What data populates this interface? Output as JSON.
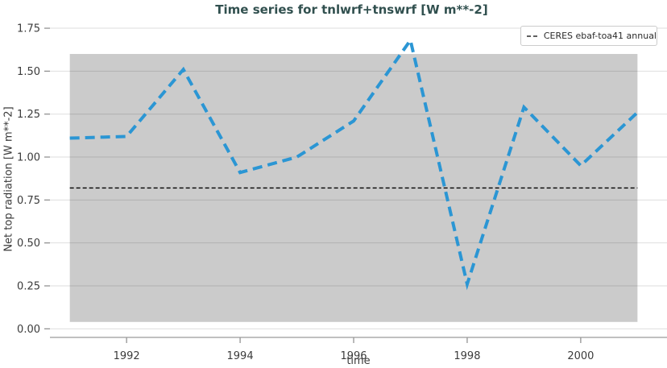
{
  "title": "Time series for tnlwrf+tnswrf [W m**-2]",
  "axes": {
    "xlabel": "time",
    "ylabel": "Net top radiation [W m**-2]"
  },
  "legend": {
    "position": "upper right",
    "items": [
      {
        "label": "CERES ebaf-toa41 annual",
        "sample": "dashed-black-line"
      }
    ]
  },
  "colors": {
    "title_text": "#31504F",
    "series_line": "#2B96D4",
    "reference_line": "#000000",
    "shaded_band": "#CBCBCB",
    "gridline": "rgba(0,0,0,0.13)",
    "axis_spine": "#9A9A9A",
    "tick_mark": "#8A8A8A",
    "tick_label": "#3B3B3B",
    "background": "#FFFFFF"
  },
  "chart_data": {
    "type": "line",
    "title": "Time series for tnlwrf+tnswrf [W m**-2]",
    "xlabel": "time",
    "ylabel": "Net top radiation [W m**-2]",
    "x": [
      1991,
      1992,
      1993,
      1994,
      1995,
      1996,
      1997,
      1998,
      1999,
      2000,
      2001
    ],
    "series": [
      {
        "name": "tnlwrf+tnswrf",
        "values": [
          1.11,
          1.12,
          1.51,
          0.91,
          1.0,
          1.21,
          1.68,
          0.26,
          1.29,
          0.95,
          1.26
        ],
        "color": "#2B96D4",
        "line_style": "dashed",
        "line_width": 4
      }
    ],
    "reference_line": {
      "label": "CERES ebaf-toa41 annual",
      "value": 0.82,
      "x_range": [
        1991,
        2001
      ],
      "color": "#000000",
      "line_style": "dashed"
    },
    "shaded_band": {
      "x_range": [
        1991,
        2001
      ],
      "y_range": [
        0.04,
        1.6
      ],
      "color": "#CBCBCB"
    },
    "xlim": [
      1990.65,
      2001.52
    ],
    "ylim": [
      -0.05,
      1.783
    ],
    "xticks": [
      {
        "value": 1992,
        "label": "1992"
      },
      {
        "value": 1994,
        "label": "1994"
      },
      {
        "value": 1996,
        "label": "1996"
      },
      {
        "value": 1998,
        "label": "1998"
      },
      {
        "value": 2000,
        "label": "2000"
      }
    ],
    "yticks": [
      {
        "value": 0.0,
        "label": "0.00"
      },
      {
        "value": 0.25,
        "label": "0.25"
      },
      {
        "value": 0.5,
        "label": "0.50"
      },
      {
        "value": 0.75,
        "label": "0.75"
      },
      {
        "value": 1.0,
        "label": "1.00"
      },
      {
        "value": 1.25,
        "label": "1.25"
      },
      {
        "value": 1.5,
        "label": "1.50"
      },
      {
        "value": 1.75,
        "label": "1.75"
      }
    ],
    "grid": true,
    "legend_position": "upper right"
  }
}
